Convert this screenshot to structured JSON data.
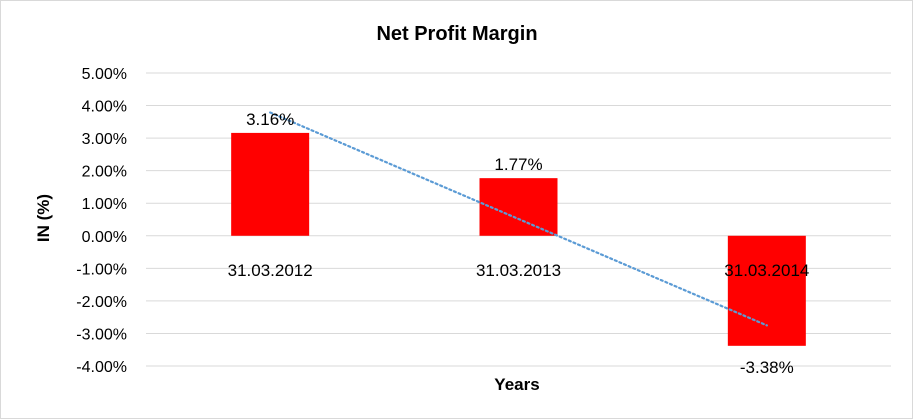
{
  "chart_data": {
    "type": "bar",
    "title": "Net Profit Margin",
    "xlabel": "Years",
    "ylabel": "IN (%)",
    "categories": [
      "31.03.2012",
      "31.03.2013",
      "31.03.2014"
    ],
    "values": [
      3.16,
      1.77,
      -3.38
    ],
    "data_labels": [
      "3.16%",
      "1.77%",
      "-3.38%"
    ],
    "ylim": [
      -4,
      5
    ],
    "yticks": [
      5,
      4,
      3,
      2,
      1,
      0,
      -1,
      -2,
      -3,
      -4
    ],
    "ytick_labels": [
      "5.00%",
      "4.00%",
      "3.00%",
      "2.00%",
      "1.00%",
      "0.00%",
      "-1.00%",
      "-2.00%",
      "-3.00%",
      "-4.00%"
    ],
    "trendline": {
      "type": "linear",
      "style": "dotted"
    },
    "grid": true,
    "legend": "none"
  },
  "colors": {
    "bar": "#ff0000",
    "trendline": "#5b9bd5",
    "grid": "#d9d9d9"
  }
}
